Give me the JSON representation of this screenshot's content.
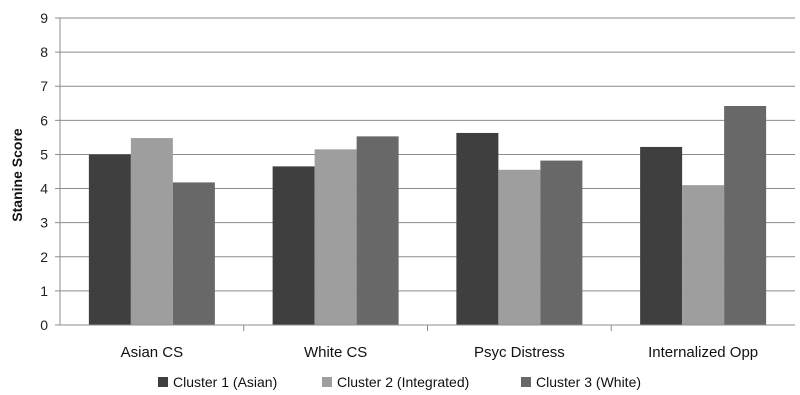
{
  "chart_data": {
    "type": "bar",
    "title": "",
    "xlabel": "",
    "ylabel": "Stanine Score",
    "ylim": [
      0,
      9
    ],
    "yticks": [
      0,
      1,
      2,
      3,
      4,
      5,
      6,
      7,
      8,
      9
    ],
    "grid": true,
    "legend_position": "bottom",
    "categories": [
      "Asian CS",
      "White CS",
      "Psyc Distress",
      "Internalized Opp"
    ],
    "series": [
      {
        "name": "Cluster 1 (Asian)",
        "color": "#3f3f3f",
        "values": [
          5.0,
          4.65,
          5.63,
          5.22
        ]
      },
      {
        "name": "Cluster 2 (Integrated)",
        "color": "#9e9e9e",
        "values": [
          5.48,
          5.15,
          4.55,
          4.1
        ]
      },
      {
        "name": "Cluster 3 (White)",
        "color": "#686868",
        "values": [
          4.18,
          5.53,
          4.82,
          6.42
        ]
      }
    ]
  }
}
